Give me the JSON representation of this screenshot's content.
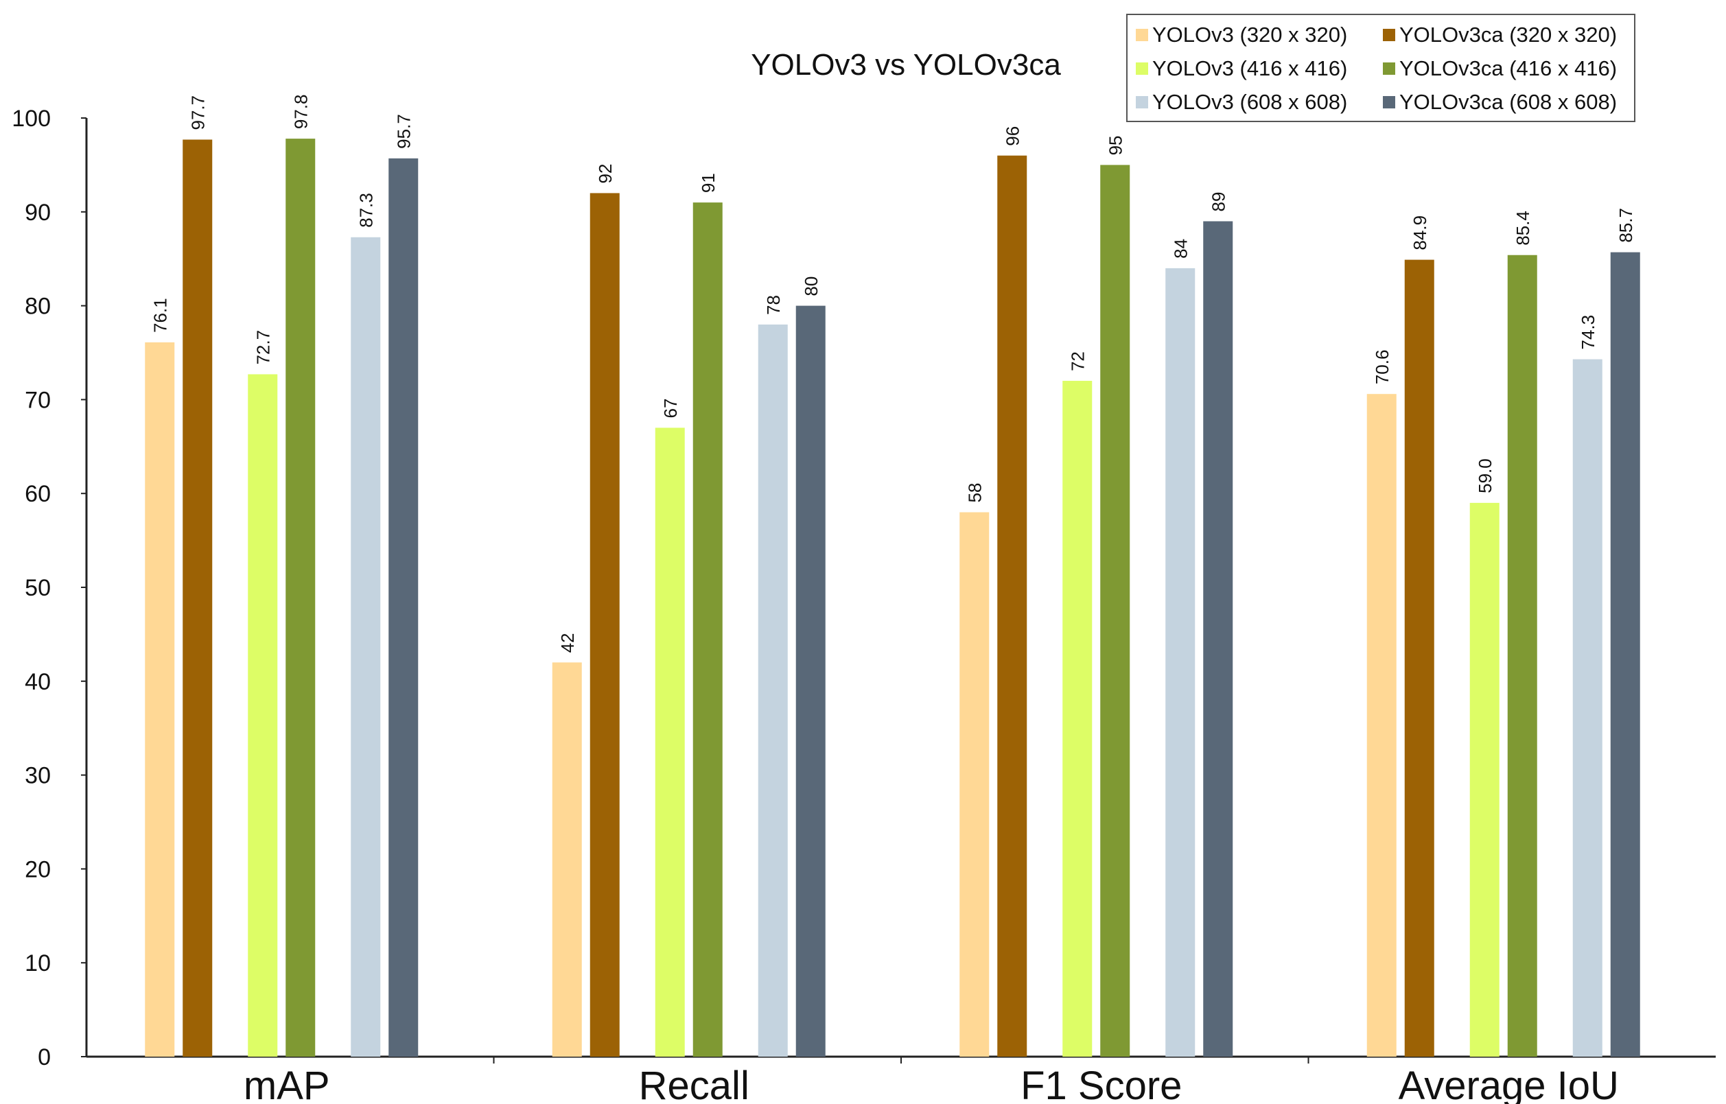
{
  "chart_data": {
    "type": "bar",
    "title": "YOLOv3 vs YOLOv3ca",
    "xlabel": "",
    "ylabel": "",
    "ylim": [
      0,
      100
    ],
    "yticks": [
      "0",
      "10",
      "20",
      "30",
      "40",
      "50",
      "60",
      "70",
      "80",
      "90",
      "100"
    ],
    "grid": false,
    "legend_position": "top-right",
    "categories": [
      "mAP",
      "Recall",
      "F1 Score",
      "Average IoU"
    ],
    "series": [
      {
        "name": "YOLOv3 (320 x 320)",
        "color": "#FFD895",
        "values": [
          76.1,
          42,
          58,
          70.6
        ],
        "labels": [
          "76.1",
          "42",
          "58",
          "70.6"
        ]
      },
      {
        "name": "YOLOv3ca (320 x 320)",
        "color": "#9C6205",
        "values": [
          97.7,
          92,
          96,
          84.9
        ],
        "labels": [
          "97.7",
          "92",
          "96",
          "84.9"
        ]
      },
      {
        "name": "YOLOv3 (416 x 416)",
        "color": "#DDFD66",
        "values": [
          72.7,
          67,
          72,
          59.0
        ],
        "labels": [
          "72.7",
          "67",
          "72",
          "59.0"
        ]
      },
      {
        "name": "YOLOv3ca (416 x 416)",
        "color": "#7F9933",
        "values": [
          97.8,
          91,
          95,
          85.4
        ],
        "labels": [
          "97.8",
          "91",
          "95",
          "85.4"
        ]
      },
      {
        "name": "YOLOv3 (608 x 608)",
        "color": "#C4D3DF",
        "values": [
          87.3,
          78,
          84,
          74.3
        ],
        "labels": [
          "87.3",
          "78",
          "84",
          "74.3"
        ]
      },
      {
        "name": "YOLOv3ca (608 x 608)",
        "color": "#596878",
        "values": [
          95.7,
          80,
          89,
          85.7
        ],
        "labels": [
          "95.7",
          "80",
          "89",
          "85.7"
        ]
      }
    ]
  }
}
